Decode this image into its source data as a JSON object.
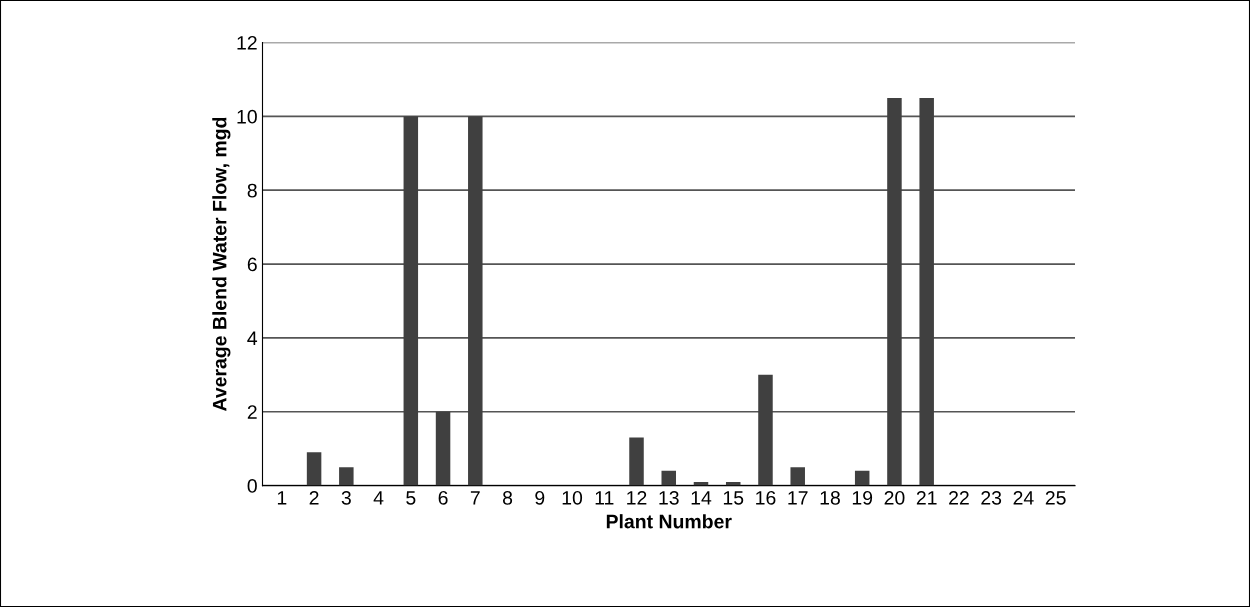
{
  "chart_data": {
    "type": "bar",
    "xlabel": "Plant Number",
    "ylabel": "Average Blend Water Flow, mgd",
    "categories": [
      "1",
      "2",
      "3",
      "4",
      "5",
      "6",
      "7",
      "8",
      "9",
      "10",
      "11",
      "12",
      "13",
      "14",
      "15",
      "16",
      "17",
      "18",
      "19",
      "20",
      "21",
      "22",
      "23",
      "24",
      "25"
    ],
    "values": [
      0,
      0.9,
      0.5,
      0,
      10,
      2,
      10,
      0,
      0,
      0,
      0,
      1.3,
      0.4,
      0.1,
      0.1,
      3,
      0.5,
      0,
      0.4,
      10.5,
      10.5,
      0,
      0,
      0,
      0
    ],
    "color": "#404040",
    "ylim": [
      0,
      12
    ],
    "yticks": [
      0,
      2,
      4,
      6,
      8,
      10,
      12
    ],
    "grid": "y",
    "legend": false
  }
}
